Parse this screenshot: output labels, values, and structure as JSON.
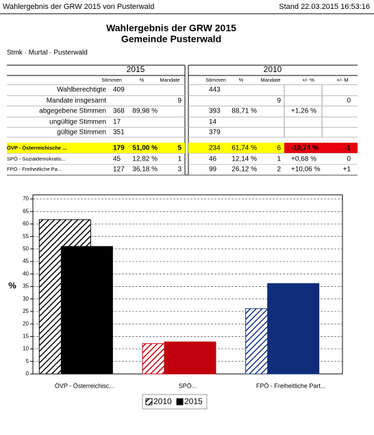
{
  "header": {
    "left": "Wahlergebnis der GRW 2015 von Pusterwald",
    "right": "Stand 22.03.2015 16:53:16"
  },
  "title": {
    "line1": "Wahlergebnis der GRW 2015",
    "line2": "Gemeinde Pusterwald"
  },
  "breadcrumb": "Stmk · Murtal · Pusterwald",
  "table": {
    "year_2015": "2015",
    "year_2010": "2010",
    "columns_2015": [
      "Stimmen",
      "%",
      "Mandate"
    ],
    "columns_2010": [
      "Stimmen",
      "%",
      "Mandate",
      "+/- %",
      "+/- M"
    ],
    "rows": [
      [
        "Wahlberechtigte",
        "409",
        null,
        null,
        "443",
        null,
        null,
        null,
        null
      ],
      [
        "Mandate insgesamt",
        null,
        null,
        "9",
        null,
        null,
        "9",
        null,
        "0"
      ],
      [
        "abgegebene Stimmen",
        "368",
        "89,98 %",
        null,
        "393",
        "88,71 %",
        null,
        "+1,26 %",
        null
      ],
      [
        "ungültige Stimmen",
        "17",
        null,
        null,
        "14",
        null,
        null,
        null,
        null
      ],
      [
        "gültige Stimmen",
        "351",
        null,
        null,
        "379",
        null,
        null,
        null,
        null
      ],
      [
        "ÖVP - Österreichische ...",
        "179",
        "51,00 %",
        "5",
        "234",
        "61,74 %",
        "6",
        "-10,74 %",
        "-1"
      ],
      [
        "SPÖ - Sozialdemokratis...",
        "45",
        "12,82 %",
        "1",
        "46",
        "12,14 %",
        "1",
        "+0,68 %",
        "0"
      ],
      [
        "FPÖ - Freiheitliche Pa...",
        "127",
        "36,18 %",
        "3",
        "99",
        "26,12 %",
        "2",
        "+10,06 %",
        "+1"
      ]
    ]
  },
  "chart_data": {
    "type": "bar",
    "ylabel": "%",
    "categories": [
      "ÖVP - Österreichisc...",
      "SPÖ...",
      "FPÖ - Freiheitliche Part..."
    ],
    "colors": [
      "#000000",
      "#c0000b",
      "#0f2d7a"
    ],
    "series": [
      {
        "name": "2010",
        "color": "#000000",
        "pattern": "hatched",
        "values": [
          61.74,
          12.14,
          26.12
        ]
      },
      {
        "name": "2015",
        "color": "#000000",
        "pattern": "solid",
        "values": [
          51.0,
          12.82,
          36.18
        ]
      }
    ],
    "ylim": [
      0,
      70
    ],
    "yticks": [
      0,
      5,
      10,
      15,
      20,
      25,
      30,
      35,
      40,
      45,
      50,
      55,
      60,
      65,
      70
    ],
    "grid": true,
    "legend": "bottom"
  }
}
